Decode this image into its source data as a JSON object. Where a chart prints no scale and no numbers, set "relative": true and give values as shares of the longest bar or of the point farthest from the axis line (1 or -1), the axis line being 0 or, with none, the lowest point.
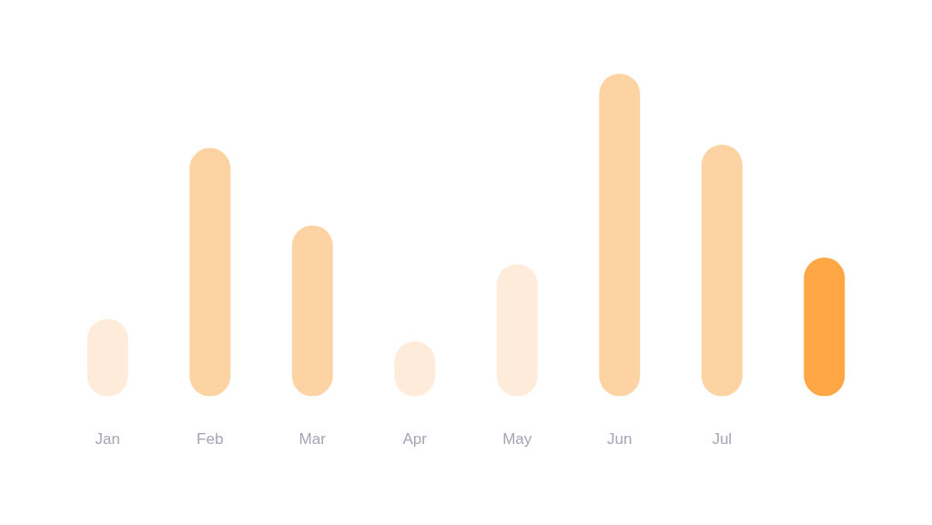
{
  "chart_data": {
    "type": "bar",
    "relative": true,
    "categories": [
      "Jan",
      "Feb",
      "Mar",
      "Apr",
      "May",
      "Jun",
      "Jul",
      null
    ],
    "values": [
      0.24,
      0.77,
      0.53,
      0.17,
      0.41,
      1,
      0.78,
      0.43
    ],
    "colors": [
      "#feebd9",
      "#fed3a4",
      "#fed3a4",
      "#feebd9",
      "#feebd9",
      "#fed3a4",
      "#fed3a4",
      "#ffa745"
    ]
  }
}
